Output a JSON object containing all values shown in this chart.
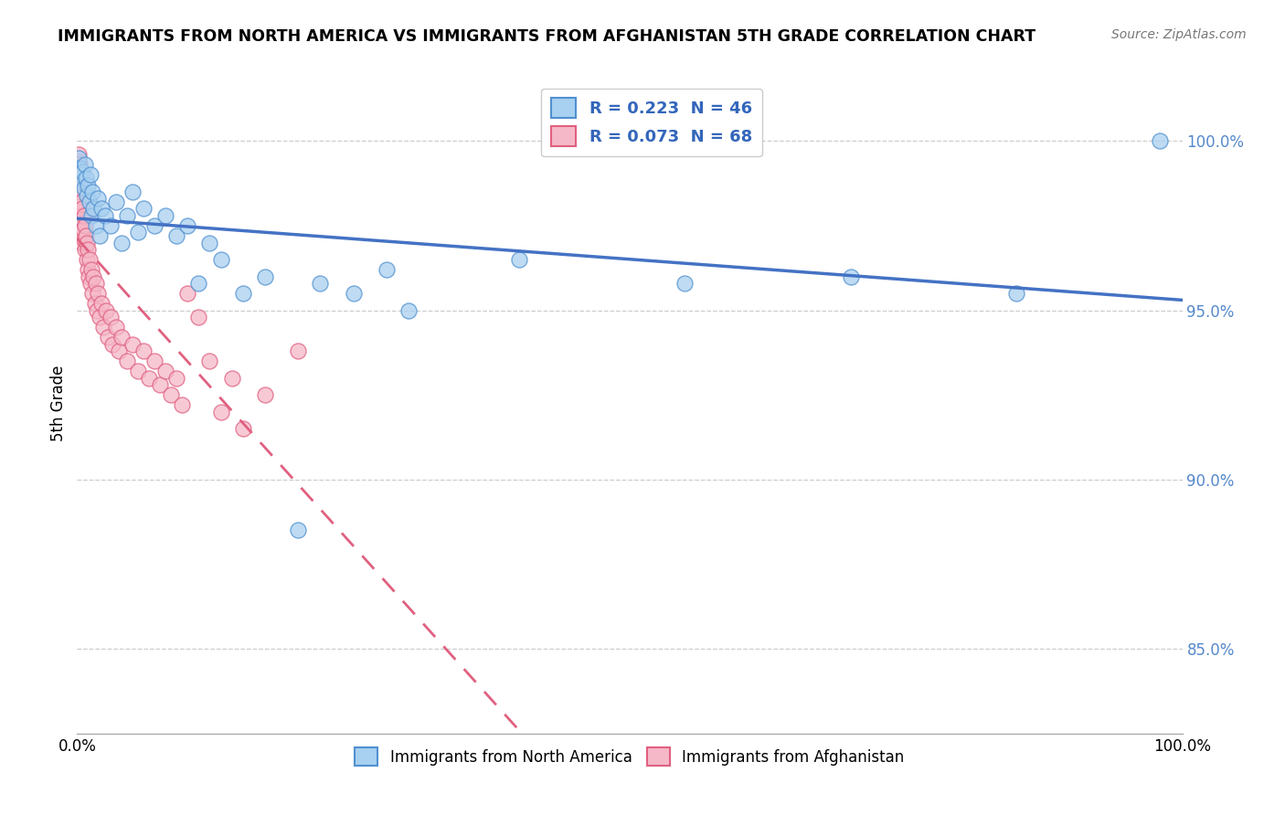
{
  "title": "IMMIGRANTS FROM NORTH AMERICA VS IMMIGRANTS FROM AFGHANISTAN 5TH GRADE CORRELATION CHART",
  "source": "Source: ZipAtlas.com",
  "ylabel": "5th Grade",
  "xlim": [
    0.0,
    100.0
  ],
  "ylim": [
    82.5,
    102.0
  ],
  "legend_blue_label": "Immigrants from North America",
  "legend_pink_label": "Immigrants from Afghanistan",
  "R_blue": 0.223,
  "N_blue": 46,
  "R_pink": 0.073,
  "N_pink": 68,
  "blue_color": "#a8d0f0",
  "pink_color": "#f5b8c8",
  "blue_edge_color": "#5090d0",
  "pink_edge_color": "#e06080",
  "blue_line_color": "#4472c4",
  "pink_line_color": "#e06080",
  "grid_color": "#cccccc",
  "y_ticks": [
    85.0,
    90.0,
    95.0,
    100.0
  ],
  "y_tick_labels": [
    "85.0%",
    "90.0%",
    "95.0%",
    "100.0%"
  ],
  "blue_scatter": [
    [
      0.1,
      99.5
    ],
    [
      0.2,
      99.2
    ],
    [
      0.3,
      99.0
    ],
    [
      0.4,
      98.8
    ],
    [
      0.5,
      99.1
    ],
    [
      0.6,
      98.6
    ],
    [
      0.7,
      99.3
    ],
    [
      0.8,
      98.9
    ],
    [
      0.9,
      98.4
    ],
    [
      1.0,
      98.7
    ],
    [
      1.1,
      98.2
    ],
    [
      1.2,
      99.0
    ],
    [
      1.3,
      97.8
    ],
    [
      1.4,
      98.5
    ],
    [
      1.5,
      98.0
    ],
    [
      1.7,
      97.5
    ],
    [
      1.9,
      98.3
    ],
    [
      2.0,
      97.2
    ],
    [
      2.2,
      98.0
    ],
    [
      2.5,
      97.8
    ],
    [
      3.0,
      97.5
    ],
    [
      3.5,
      98.2
    ],
    [
      4.0,
      97.0
    ],
    [
      4.5,
      97.8
    ],
    [
      5.0,
      98.5
    ],
    [
      5.5,
      97.3
    ],
    [
      6.0,
      98.0
    ],
    [
      7.0,
      97.5
    ],
    [
      8.0,
      97.8
    ],
    [
      9.0,
      97.2
    ],
    [
      10.0,
      97.5
    ],
    [
      11.0,
      95.8
    ],
    [
      12.0,
      97.0
    ],
    [
      13.0,
      96.5
    ],
    [
      15.0,
      95.5
    ],
    [
      17.0,
      96.0
    ],
    [
      20.0,
      88.5
    ],
    [
      22.0,
      95.8
    ],
    [
      25.0,
      95.5
    ],
    [
      28.0,
      96.2
    ],
    [
      30.0,
      95.0
    ],
    [
      40.0,
      96.5
    ],
    [
      55.0,
      95.8
    ],
    [
      70.0,
      96.0
    ],
    [
      85.0,
      95.5
    ],
    [
      98.0,
      100.0
    ]
  ],
  "pink_scatter": [
    [
      0.05,
      99.4
    ],
    [
      0.08,
      99.1
    ],
    [
      0.1,
      99.6
    ],
    [
      0.12,
      98.9
    ],
    [
      0.15,
      99.2
    ],
    [
      0.18,
      98.6
    ],
    [
      0.2,
      99.3
    ],
    [
      0.22,
      98.4
    ],
    [
      0.25,
      99.0
    ],
    [
      0.28,
      98.2
    ],
    [
      0.3,
      98.8
    ],
    [
      0.32,
      97.9
    ],
    [
      0.35,
      98.5
    ],
    [
      0.38,
      97.6
    ],
    [
      0.4,
      98.2
    ],
    [
      0.42,
      97.3
    ],
    [
      0.45,
      98.0
    ],
    [
      0.48,
      97.0
    ],
    [
      0.5,
      97.7
    ],
    [
      0.55,
      97.4
    ],
    [
      0.6,
      97.8
    ],
    [
      0.65,
      97.1
    ],
    [
      0.7,
      97.5
    ],
    [
      0.75,
      96.8
    ],
    [
      0.8,
      97.2
    ],
    [
      0.85,
      96.5
    ],
    [
      0.9,
      97.0
    ],
    [
      0.95,
      96.2
    ],
    [
      1.0,
      96.8
    ],
    [
      1.05,
      96.0
    ],
    [
      1.1,
      96.5
    ],
    [
      1.2,
      95.8
    ],
    [
      1.3,
      96.2
    ],
    [
      1.4,
      95.5
    ],
    [
      1.5,
      96.0
    ],
    [
      1.6,
      95.2
    ],
    [
      1.7,
      95.8
    ],
    [
      1.8,
      95.0
    ],
    [
      1.9,
      95.5
    ],
    [
      2.0,
      94.8
    ],
    [
      2.2,
      95.2
    ],
    [
      2.4,
      94.5
    ],
    [
      2.6,
      95.0
    ],
    [
      2.8,
      94.2
    ],
    [
      3.0,
      94.8
    ],
    [
      3.2,
      94.0
    ],
    [
      3.5,
      94.5
    ],
    [
      3.8,
      93.8
    ],
    [
      4.0,
      94.2
    ],
    [
      4.5,
      93.5
    ],
    [
      5.0,
      94.0
    ],
    [
      5.5,
      93.2
    ],
    [
      6.0,
      93.8
    ],
    [
      6.5,
      93.0
    ],
    [
      7.0,
      93.5
    ],
    [
      7.5,
      92.8
    ],
    [
      8.0,
      93.2
    ],
    [
      8.5,
      92.5
    ],
    [
      9.0,
      93.0
    ],
    [
      9.5,
      92.2
    ],
    [
      10.0,
      95.5
    ],
    [
      11.0,
      94.8
    ],
    [
      12.0,
      93.5
    ],
    [
      13.0,
      92.0
    ],
    [
      14.0,
      93.0
    ],
    [
      15.0,
      91.5
    ],
    [
      17.0,
      92.5
    ],
    [
      20.0,
      93.8
    ]
  ]
}
